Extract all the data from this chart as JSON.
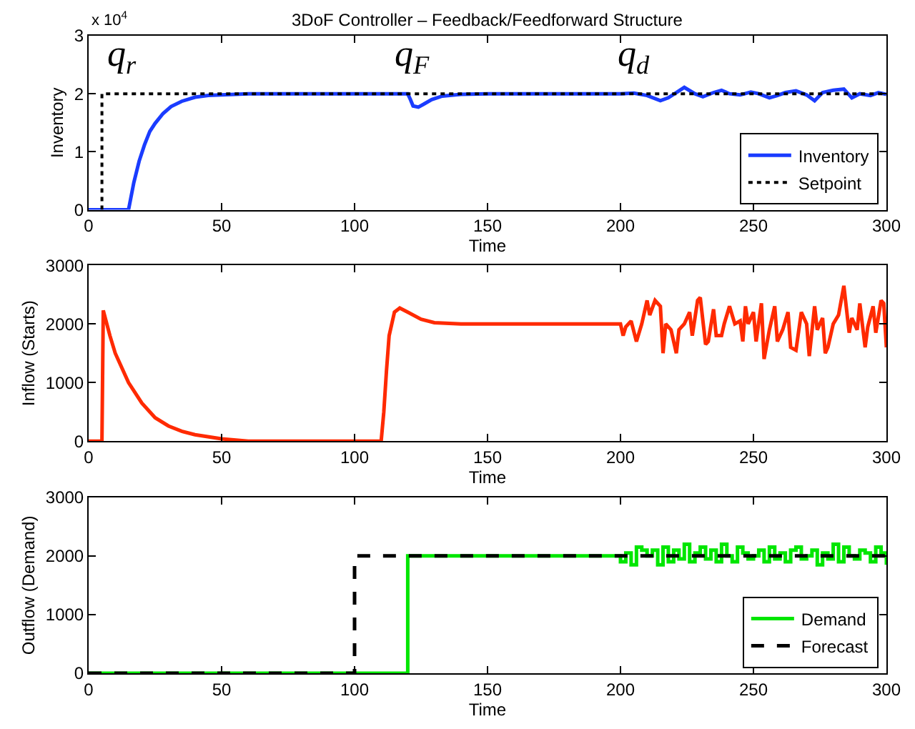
{
  "chart_data": [
    {
      "type": "line",
      "title": "3DoF Controller – Feedback/Feedforward Structure",
      "xlabel": "Time",
      "ylabel": "Inventory",
      "xlim": [
        0,
        300
      ],
      "ylim": [
        0,
        3
      ],
      "xticks": [
        0,
        50,
        100,
        150,
        200,
        250,
        300
      ],
      "yticks": [
        0,
        1,
        2,
        3
      ],
      "legend": "bottom right",
      "annotations": [
        "x 10$^{4}$",
        "q$_{r}$",
        "q$_{F}$",
        "q$_{d}$"
      ],
      "series": [
        {
          "name": "Inventory",
          "color": "#1a3cff",
          "line_style": "solid",
          "x": [
            0,
            15,
            17,
            19,
            21,
            23,
            25,
            28,
            31,
            35,
            40,
            45,
            55,
            60,
            120,
            121,
            122,
            124,
            126,
            129,
            133,
            140,
            150,
            200,
            205,
            210,
            215,
            218,
            222,
            224,
            228,
            231,
            235,
            238,
            241,
            245,
            249,
            252,
            256,
            259,
            262,
            266,
            270,
            273,
            276,
            280,
            284,
            287,
            290,
            294,
            297,
            300
          ],
          "values": [
            0,
            0,
            0.47,
            0.84,
            1.12,
            1.35,
            1.49,
            1.66,
            1.78,
            1.87,
            1.94,
            1.97,
            1.99,
            2.0,
            2.0,
            1.9,
            1.79,
            1.77,
            1.82,
            1.9,
            1.96,
            1.99,
            2.0,
            2.0,
            2.01,
            1.97,
            1.88,
            1.93,
            2.05,
            2.11,
            2.0,
            1.95,
            2.02,
            2.06,
            2.0,
            1.98,
            2.03,
            2.0,
            1.93,
            1.97,
            2.02,
            2.05,
            1.98,
            1.88,
            2.02,
            2.06,
            2.08,
            1.93,
            2.0,
            1.97,
            2.02,
            1.99
          ]
        },
        {
          "name": "Setpoint",
          "color": "#000000",
          "line_style": "dotted",
          "x": [
            5,
            5,
            300
          ],
          "values": [
            0,
            2,
            2
          ]
        }
      ]
    },
    {
      "type": "line",
      "xlabel": "Time",
      "ylabel": "Inflow (Starts)",
      "xlim": [
        0,
        300
      ],
      "ylim": [
        0,
        3000
      ],
      "xticks": [
        0,
        50,
        100,
        150,
        200,
        250,
        300
      ],
      "yticks": [
        0,
        1000,
        2000,
        3000
      ],
      "series": [
        {
          "color": "#ff2a00",
          "line_style": "solid",
          "x": [
            0,
            5,
            5.5,
            8,
            10,
            15,
            20,
            25,
            30,
            35,
            40,
            50,
            60,
            80,
            110,
            111,
            112,
            113,
            115,
            117,
            120,
            125,
            130,
            140,
            200,
            201,
            202,
            204,
            206,
            208,
            210,
            211,
            213,
            215,
            216,
            217,
            219,
            221,
            222,
            224,
            226,
            227,
            229,
            230,
            232,
            233,
            235,
            236,
            238,
            239,
            241,
            243,
            245,
            246,
            247,
            248,
            250,
            251,
            253,
            254,
            256,
            258,
            259,
            261,
            263,
            264,
            266,
            268,
            270,
            271,
            273,
            274,
            276,
            277,
            278,
            280,
            282,
            284,
            286,
            287,
            289,
            290,
            292,
            293,
            295,
            296,
            298,
            299,
            300
          ],
          "values": [
            0,
            0,
            2230,
            1800,
            1500,
            1000,
            650,
            400,
            260,
            170,
            110,
            40,
            0,
            0,
            0,
            500,
            1200,
            1800,
            2200,
            2270,
            2200,
            2080,
            2020,
            2000,
            2000,
            1800,
            1950,
            2050,
            1700,
            2000,
            2400,
            2150,
            2400,
            2300,
            1500,
            2000,
            1900,
            1500,
            1900,
            2000,
            2200,
            1800,
            2400,
            2450,
            1650,
            1700,
            2250,
            1800,
            1800,
            2000,
            2300,
            2000,
            2050,
            1700,
            2300,
            2000,
            2200,
            1700,
            2350,
            1400,
            1900,
            2300,
            1700,
            1900,
            2200,
            1600,
            1550,
            2200,
            2000,
            1450,
            2300,
            1900,
            2100,
            1500,
            1600,
            2000,
            2150,
            2650,
            1850,
            2100,
            1900,
            2350,
            1600,
            1950,
            2300,
            1850,
            2400,
            2350,
            1600
          ]
        }
      ]
    },
    {
      "type": "step",
      "xlabel": "Time",
      "ylabel": "Outflow (Demand)",
      "xlim": [
        0,
        300
      ],
      "ylim": [
        0,
        3000
      ],
      "xticks": [
        0,
        50,
        100,
        150,
        200,
        250,
        300
      ],
      "yticks": [
        0,
        1000,
        2000,
        3000
      ],
      "legend": "bottom right",
      "series": [
        {
          "name": "Demand",
          "color": "#00e600",
          "line_style": "solid",
          "x": [
            0,
            120,
            200,
            202,
            204,
            206,
            208,
            210,
            212,
            214,
            216,
            218,
            220,
            222,
            224,
            226,
            228,
            230,
            232,
            234,
            236,
            238,
            240,
            242,
            244,
            246,
            248,
            250,
            252,
            254,
            256,
            258,
            260,
            262,
            264,
            266,
            268,
            270,
            272,
            274,
            276,
            278,
            280,
            282,
            284,
            286,
            288,
            290,
            292,
            294,
            296,
            298,
            300
          ],
          "values": [
            0,
            2000,
            1900,
            2050,
            1850,
            2150,
            2100,
            2000,
            2100,
            1850,
            2150,
            1900,
            2100,
            1950,
            2200,
            1900,
            2050,
            2150,
            1950,
            2100,
            1900,
            2200,
            2000,
            1900,
            2150,
            2050,
            1950,
            2000,
            2100,
            1900,
            2150,
            1950,
            2050,
            1900,
            2100,
            2150,
            1950,
            2000,
            2100,
            1850,
            2050,
            1950,
            2200,
            1900,
            2150,
            2000,
            1950,
            2100,
            2050,
            1900,
            2150,
            2050,
            1850
          ]
        },
        {
          "name": "Forecast",
          "color": "#000000",
          "line_style": "dashed",
          "x": [
            0,
            100,
            300
          ],
          "values": [
            0,
            2000,
            2000
          ]
        }
      ]
    }
  ]
}
